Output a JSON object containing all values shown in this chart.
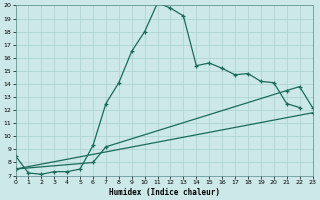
{
  "xlabel": "Humidex (Indice chaleur)",
  "bg_color": "#cce8e8",
  "grid_color": "#aad0d0",
  "line_color": "#1a6b5a",
  "line1_x": [
    0,
    1,
    2,
    3,
    4,
    5,
    6,
    7,
    8,
    9,
    10,
    11,
    12,
    13,
    14,
    15,
    16,
    17,
    18,
    19,
    20,
    21,
    22
  ],
  "line1_y": [
    8.5,
    7.2,
    7.1,
    7.3,
    7.3,
    7.5,
    9.3,
    12.5,
    14.1,
    16.5,
    18.0,
    20.2,
    19.8,
    19.2,
    15.4,
    15.6,
    15.2,
    14.7,
    14.8,
    14.2,
    14.1,
    12.5,
    12.2
  ],
  "line2_x": [
    0,
    6,
    7,
    21,
    22,
    23
  ],
  "line2_y": [
    7.5,
    8.0,
    9.2,
    13.5,
    13.8,
    12.2
  ],
  "line3_x": [
    0,
    23
  ],
  "line3_y": [
    7.5,
    11.8
  ],
  "xlim": [
    0,
    23
  ],
  "ylim": [
    7,
    20
  ],
  "yticks": [
    7,
    8,
    9,
    10,
    11,
    12,
    13,
    14,
    15,
    16,
    17,
    18,
    19,
    20
  ],
  "xticks": [
    0,
    1,
    2,
    3,
    4,
    5,
    6,
    7,
    8,
    9,
    10,
    11,
    12,
    13,
    14,
    15,
    16,
    17,
    18,
    19,
    20,
    21,
    22,
    23
  ]
}
